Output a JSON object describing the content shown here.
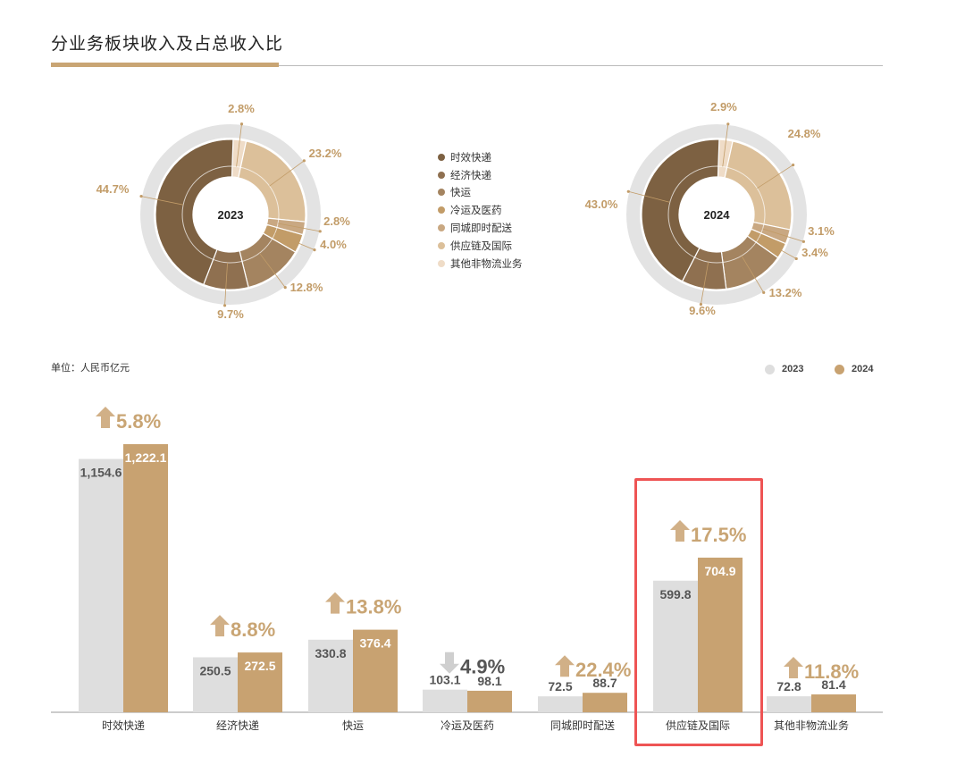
{
  "header": {
    "title": "分业务板块收入及占总收入比"
  },
  "donut_legend": [
    {
      "label": "时效快递",
      "color": "#7d6142"
    },
    {
      "label": "经济快递",
      "color": "#8f7050"
    },
    {
      "label": "快运",
      "color": "#a48460"
    },
    {
      "label": "冷运及医药",
      "color": "#c29c68"
    },
    {
      "label": "同城即时配送",
      "color": "#c9a882"
    },
    {
      "label": "供应链及国际",
      "color": "#dcc09a"
    },
    {
      "label": "其他非物流业务",
      "color": "#efdcc7"
    }
  ],
  "bar_chart_meta": {
    "unit": "单位：人民币亿元",
    "legend": [
      {
        "label": "2023",
        "color": "#dedede"
      },
      {
        "label": "2024",
        "color": "#c8a271"
      }
    ]
  },
  "chart_data": [
    {
      "type": "pie",
      "center_label": "2023",
      "categories": [
        "时效快递",
        "经济快递",
        "快运",
        "冷运及医药",
        "同城即时配送",
        "供应链及国际",
        "其他非物流业务"
      ],
      "values": [
        44.7,
        9.7,
        12.8,
        4.0,
        2.8,
        23.2,
        2.8
      ],
      "labels": [
        "44.7%",
        "9.7%",
        "12.8%",
        "4.0%",
        "2.8%",
        "23.2%",
        "2.8%"
      ]
    },
    {
      "type": "pie",
      "center_label": "2024",
      "categories": [
        "时效快递",
        "经济快递",
        "快运",
        "冷运及医药",
        "同城即时配送",
        "供应链及国际",
        "其他非物流业务"
      ],
      "values": [
        43.0,
        9.6,
        13.2,
        3.4,
        3.1,
        24.8,
        2.9
      ],
      "labels": [
        "43.0%",
        "9.6%",
        "13.2%",
        "3.4%",
        "3.1%",
        "24.8%",
        "2.9%"
      ]
    },
    {
      "type": "bar",
      "categories": [
        "时效快递",
        "经济快递",
        "快运",
        "冷运及医药",
        "同城即时配送",
        "供应链及国际",
        "其他非物流业务"
      ],
      "series": [
        {
          "name": "2023",
          "values": [
            1154.6,
            250.5,
            330.8,
            103.1,
            72.5,
            599.8,
            72.8
          ],
          "labels": [
            "1,154.6",
            "250.5",
            "330.8",
            "103.1",
            "72.5",
            "599.8",
            "72.8"
          ]
        },
        {
          "name": "2024",
          "values": [
            1222.1,
            272.5,
            376.4,
            98.1,
            88.7,
            704.9,
            81.4
          ],
          "labels": [
            "1,222.1",
            "272.5",
            "376.4",
            "98.1",
            "88.7",
            "704.9",
            "81.4"
          ]
        }
      ],
      "growth": [
        {
          "text": "5.8%",
          "direction": "up"
        },
        {
          "text": "8.8%",
          "direction": "up"
        },
        {
          "text": "13.8%",
          "direction": "up"
        },
        {
          "text": "4.9%",
          "direction": "down"
        },
        {
          "text": "22.4%",
          "direction": "up"
        },
        {
          "text": "17.5%",
          "direction": "up"
        },
        {
          "text": "11.8%",
          "direction": "up"
        }
      ],
      "highlighted_category": "供应链及国际"
    }
  ]
}
